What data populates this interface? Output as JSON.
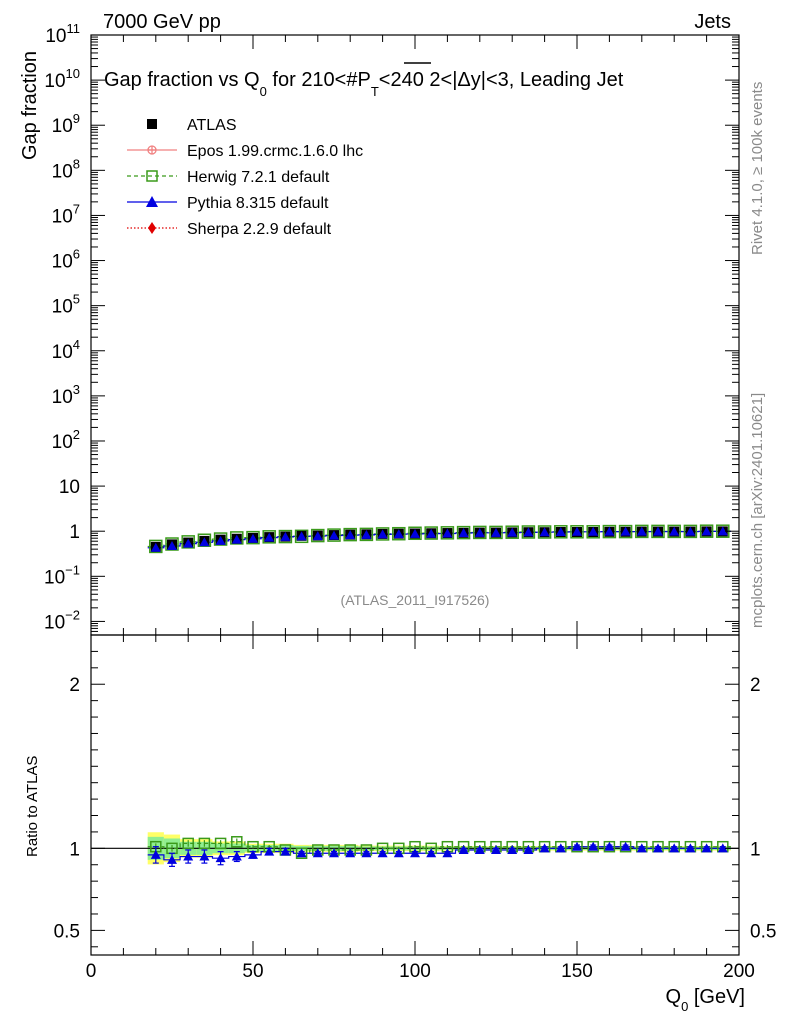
{
  "header": {
    "left": "7000 GeV pp",
    "right": "Jets"
  },
  "side_labels": {
    "rivet": "Rivet 4.1.0, ≥ 100k events",
    "mcplots": "mcplots.cern.ch [arXiv:2401.10621]"
  },
  "chart_data": {
    "type": "scatter",
    "title": "Gap fraction vs Q0 for 210<#PT<240  2<|Δy|<3, Leading Jet",
    "title_parts": {
      "a": "Gap fraction vs Q",
      "sub": "0",
      "b": " for 210<#",
      "p": "P",
      "psub": "T",
      "c": "<240  2<|Δy|<3, Leading Jet"
    },
    "analysis_id": "(ATLAS_2011_I917526)",
    "xlabel": "Q0 [GeV]",
    "xlabel_parts": {
      "main": "Q",
      "sub": "0",
      "unit": " [GeV]"
    },
    "ylabel": "Gap fraction",
    "ratio_ylabel": "Ratio to ATLAS",
    "xlim": [
      0,
      200
    ],
    "ylim": [
      0.005,
      100000000000
    ],
    "yscale": "log",
    "ratio_ylim": [
      0.35,
      2.3
    ],
    "x_ticks": [
      0,
      50,
      100,
      150,
      200
    ],
    "x_tick_labels": [
      "0",
      "50",
      "100",
      "150",
      "200"
    ],
    "y_ticks": [
      {
        "v": 0.01,
        "base": "10",
        "exp": "−2"
      },
      {
        "v": 0.1,
        "base": "10",
        "exp": "−1"
      },
      {
        "v": 1,
        "base": "1",
        "exp": ""
      },
      {
        "v": 10,
        "base": "10",
        "exp": ""
      },
      {
        "v": 100,
        "base": "10",
        "exp": "2"
      },
      {
        "v": 1000,
        "base": "10",
        "exp": "3"
      },
      {
        "v": 10000,
        "base": "10",
        "exp": "4"
      },
      {
        "v": 100000,
        "base": "10",
        "exp": "5"
      },
      {
        "v": 1000000,
        "base": "10",
        "exp": "6"
      },
      {
        "v": 10000000,
        "base": "10",
        "exp": "7"
      },
      {
        "v": 100000000,
        "base": "10",
        "exp": "8"
      },
      {
        "v": 1000000000,
        "base": "10",
        "exp": "9"
      },
      {
        "v": 10000000000,
        "base": "10",
        "exp": "10"
      },
      {
        "v": 100000000000,
        "base": "10",
        "exp": "11"
      }
    ],
    "ratio_ticks": [
      {
        "v": 0.5,
        "label": "0.5"
      },
      {
        "v": 1,
        "label": "1"
      },
      {
        "v": 2,
        "label": "2"
      }
    ],
    "legend": [
      {
        "name": "ATLAS",
        "color": "#000000",
        "marker": "square-filled",
        "line": "none"
      },
      {
        "name": "Epos 1.99.crmc.1.6.0 lhc",
        "color": "#f08080",
        "marker": "cross-circle",
        "line": "solid"
      },
      {
        "name": "Herwig 7.2.1 default",
        "color": "#3a9a1a",
        "marker": "square-open",
        "line": "dashed"
      },
      {
        "name": "Pythia 8.315 default",
        "color": "#0000e0",
        "marker": "triangle",
        "line": "solid"
      },
      {
        "name": "Sherpa 2.2.9 default",
        "color": "#e00000",
        "marker": "diamond",
        "line": "dotted"
      }
    ],
    "x": [
      20,
      25,
      30,
      35,
      40,
      45,
      50,
      55,
      60,
      65,
      70,
      75,
      80,
      85,
      90,
      95,
      100,
      105,
      110,
      115,
      120,
      125,
      130,
      135,
      140,
      145,
      150,
      155,
      160,
      165,
      170,
      175,
      180,
      185,
      190,
      195
    ],
    "series": [
      {
        "name": "ATLAS",
        "values": [
          0.45,
          0.51,
          0.56,
          0.61,
          0.65,
          0.68,
          0.71,
          0.74,
          0.76,
          0.79,
          0.8,
          0.82,
          0.84,
          0.85,
          0.87,
          0.88,
          0.89,
          0.9,
          0.91,
          0.92,
          0.93,
          0.93,
          0.94,
          0.95,
          0.95,
          0.96,
          0.96,
          0.96,
          0.97,
          0.97,
          0.98,
          0.98,
          0.98,
          0.98,
          0.99,
          0.99
        ]
      },
      {
        "name": "Herwig 7.2.1 default",
        "values": [
          0.46,
          0.52,
          0.58,
          0.63,
          0.67,
          0.71,
          0.72,
          0.75,
          0.76,
          0.77,
          0.8,
          0.82,
          0.84,
          0.85,
          0.87,
          0.88,
          0.9,
          0.91,
          0.92,
          0.93,
          0.94,
          0.94,
          0.95,
          0.96,
          0.96,
          0.97,
          0.97,
          0.97,
          0.98,
          0.98,
          0.99,
          0.99,
          0.99,
          0.99,
          1.0,
          1.0
        ]
      },
      {
        "name": "Pythia 8.315 default",
        "values": [
          0.43,
          0.47,
          0.53,
          0.57,
          0.61,
          0.65,
          0.68,
          0.72,
          0.75,
          0.77,
          0.78,
          0.8,
          0.82,
          0.83,
          0.85,
          0.86,
          0.87,
          0.88,
          0.89,
          0.91,
          0.92,
          0.92,
          0.93,
          0.94,
          0.95,
          0.96,
          0.97,
          0.97,
          0.98,
          0.98,
          0.98,
          0.98,
          0.98,
          0.98,
          0.99,
          0.99
        ]
      }
    ],
    "ratio_series": [
      {
        "name": "Herwig 7.2.1 default",
        "values": [
          1.01,
          1.0,
          1.03,
          1.03,
          1.03,
          1.04,
          1.01,
          1.01,
          0.99,
          0.97,
          0.99,
          0.99,
          0.99,
          0.99,
          1.0,
          1.0,
          1.01,
          1.0,
          1.01,
          1.01,
          1.01,
          1.01,
          1.01,
          1.01,
          1.01,
          1.01,
          1.01,
          1.01,
          1.01,
          1.01,
          1.01,
          1.01,
          1.01,
          1.01,
          1.01,
          1.01
        ],
        "errors": [
          0.02,
          0.02,
          0.02,
          0.02,
          0.02,
          0.02,
          0.01,
          0.01,
          0.01,
          0.01,
          0.01,
          0.01,
          0.01,
          0.01,
          0.01,
          0.01,
          0.01,
          0.01,
          0.01,
          0.01,
          0.01,
          0.01,
          0.01,
          0.01,
          0.01,
          0.01,
          0.01,
          0.01,
          0.01,
          0.01,
          0.01,
          0.01,
          0.01,
          0.01,
          0.01,
          0.01
        ]
      },
      {
        "name": "Pythia 8.315 default",
        "values": [
          0.96,
          0.93,
          0.95,
          0.95,
          0.94,
          0.95,
          0.96,
          0.98,
          0.98,
          0.97,
          0.97,
          0.97,
          0.97,
          0.97,
          0.97,
          0.97,
          0.97,
          0.97,
          0.97,
          0.99,
          0.99,
          0.99,
          0.99,
          0.99,
          1.0,
          1.0,
          1.01,
          1.01,
          1.01,
          1.01,
          1.0,
          1.0,
          1.0,
          1.0,
          1.0,
          1.0
        ],
        "errors": [
          0.05,
          0.04,
          0.04,
          0.04,
          0.04,
          0.03,
          0.02,
          0.02,
          0.02,
          0.01,
          0.01,
          0.01,
          0.01,
          0.01,
          0.01,
          0.01,
          0.01,
          0.01,
          0.01,
          0.01,
          0.01,
          0.01,
          0.01,
          0.01,
          0.01,
          0.01,
          0.01,
          0.01,
          0.01,
          0.01,
          0.01,
          0.01,
          0.01,
          0.01,
          0.01,
          0.01
        ]
      }
    ],
    "ratio_band": {
      "inner_color": "#90ee90",
      "outer_color": "#ffff66",
      "values": [
        0.07,
        0.06,
        0.04,
        0.04,
        0.03,
        0.03,
        0.02,
        0.02,
        0.02,
        0.015,
        0.015,
        0.015,
        0.015,
        0.012,
        0.012,
        0.012,
        0.012,
        0.012,
        0.01,
        0.01,
        0.01,
        0.01,
        0.01,
        0.01,
        0.01,
        0.01,
        0.01,
        0.01,
        0.01,
        0.01,
        0.01,
        0.01,
        0.01,
        0.01,
        0.01,
        0.01
      ]
    }
  }
}
